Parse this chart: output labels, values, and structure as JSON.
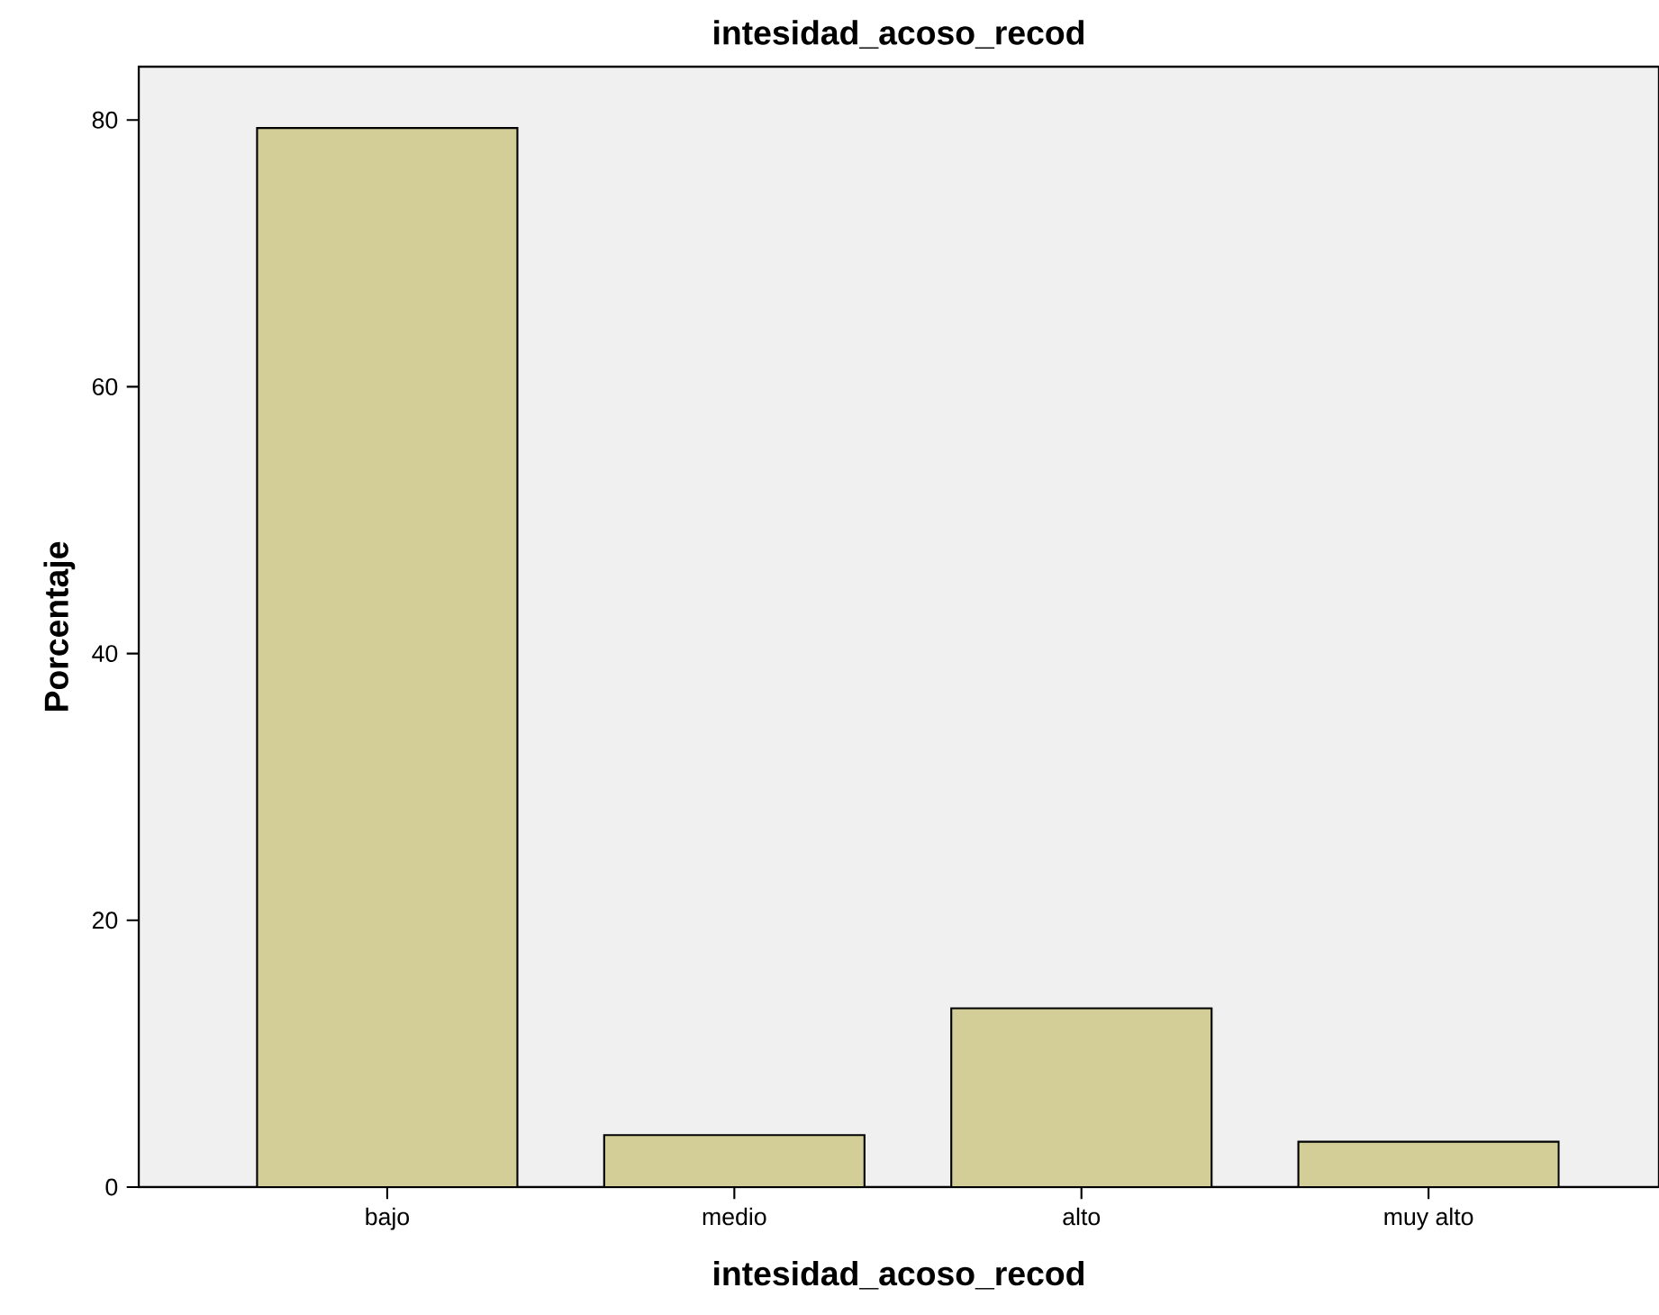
{
  "chart_data": {
    "type": "bar",
    "title": "intesidad_acoso_recod",
    "xlabel": "intesidad_acoso_recod",
    "ylabel": "Porcentaje",
    "categories": [
      "bajo",
      "medio",
      "alto",
      "muy alto"
    ],
    "values": [
      79.4,
      3.9,
      13.4,
      3.4
    ],
    "color": "#d3ce97",
    "ylim": [
      0,
      84
    ],
    "yticks": [
      0,
      20,
      40,
      60,
      80
    ]
  }
}
